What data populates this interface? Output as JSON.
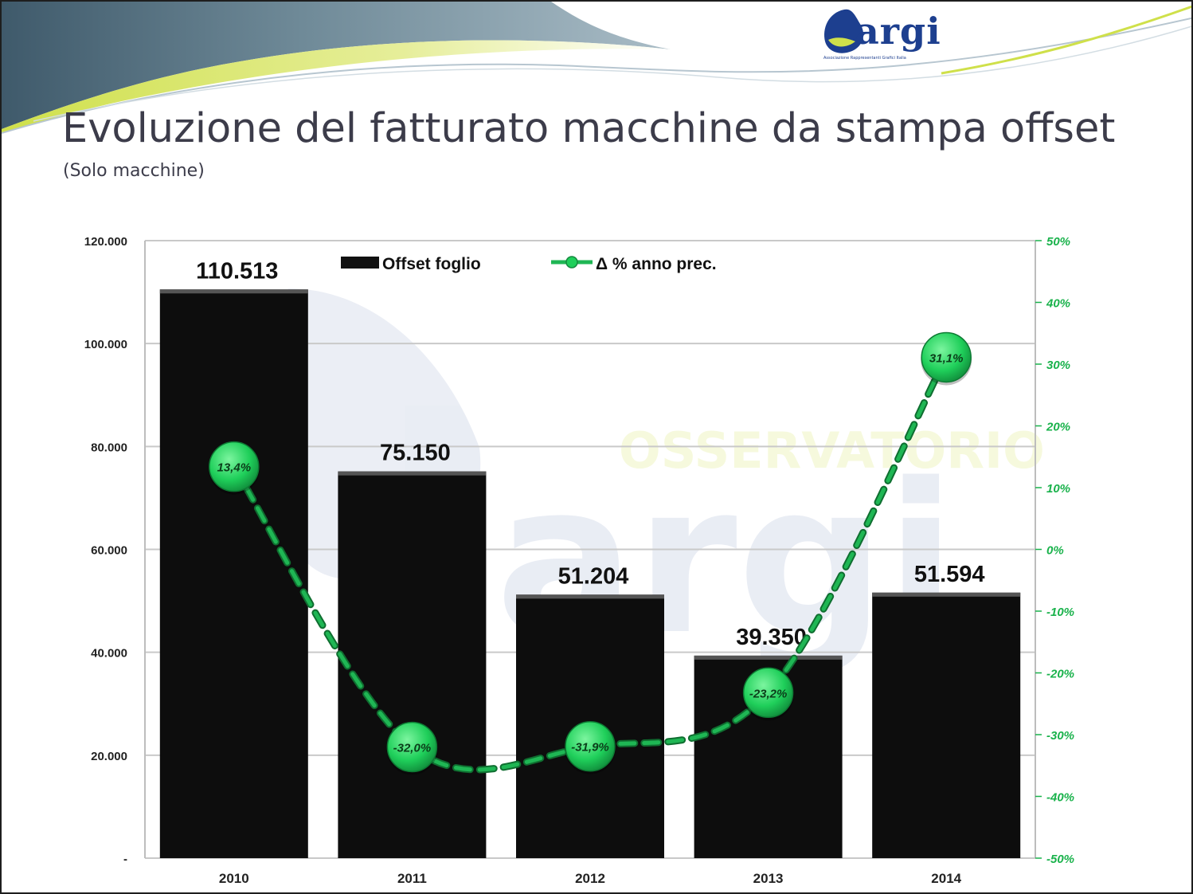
{
  "slide": {
    "title": "Evoluzione del fatturato macchine da stampa offset",
    "subtitle": "(Solo macchine)"
  },
  "logo": {
    "word": "argi",
    "tagline": "Associazione Rappresentanti Grafici Italia"
  },
  "colors": {
    "bars": "#0d0d0d",
    "line": "#1fb654",
    "marker": "#1fcf5a",
    "title": "#3c3c4a"
  },
  "chart_data": {
    "type": "bar",
    "categories": [
      "2010",
      "2011",
      "2012",
      "2013",
      "2014"
    ],
    "series": [
      {
        "name": "Offset foglio",
        "type": "bar",
        "axis": "left",
        "values": [
          110513,
          75150,
          51204,
          39350,
          51594
        ],
        "labels": [
          "110.513",
          "75.150",
          "51.204",
          "39.350",
          "51.594"
        ]
      },
      {
        "name": "Δ % anno prec.",
        "type": "line",
        "axis": "right",
        "values": [
          13.4,
          -32.0,
          -31.9,
          -23.2,
          31.1
        ],
        "labels": [
          "13,4%",
          "-32,0%",
          "-31,9%",
          "-23,2%",
          "31,1%"
        ]
      }
    ],
    "y_left": {
      "range": [
        0,
        120000
      ],
      "ticks": [
        0,
        20000,
        40000,
        60000,
        80000,
        100000,
        120000
      ],
      "tick_labels": [
        "-",
        "20.000",
        "40.000",
        "60.000",
        "80.000",
        "100.000",
        "120.000"
      ]
    },
    "y_right": {
      "range": [
        -50,
        50
      ],
      "ticks": [
        -50,
        -40,
        -30,
        -20,
        -10,
        0,
        10,
        20,
        30,
        40,
        50
      ],
      "tick_labels": [
        "-50%",
        "-40%",
        "-30%",
        "-20%",
        "-10%",
        "0%",
        "10%",
        "20%",
        "30%",
        "40%",
        "50%"
      ]
    },
    "grid": true,
    "legend": "top",
    "watermark": "OSSERVATORIO"
  }
}
